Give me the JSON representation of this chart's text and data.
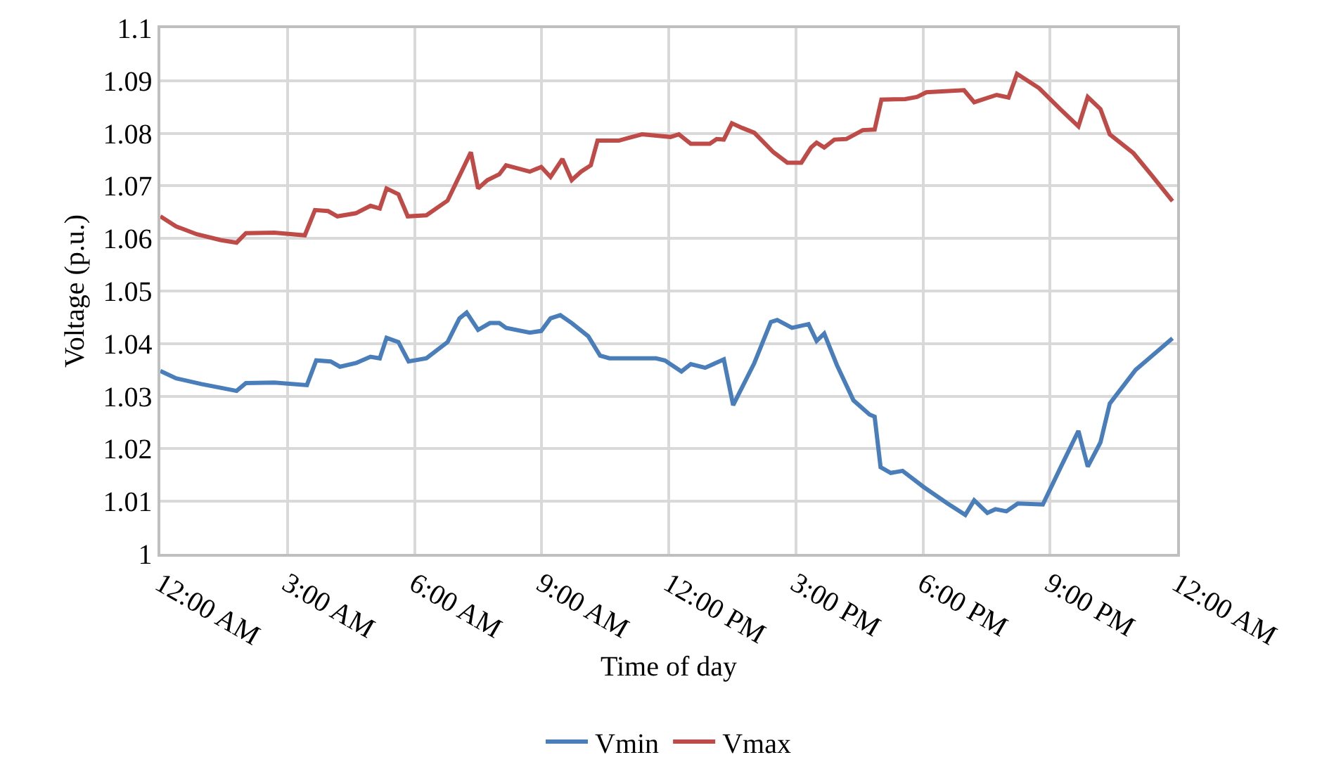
{
  "chart_data": {
    "type": "line",
    "xlabel": "Time of day",
    "ylabel": "Voltage (p.u.)",
    "xlim": [
      0,
      24
    ],
    "xticks": [
      {
        "value": 0,
        "label": "12:00 AM"
      },
      {
        "value": 3,
        "label": "3:00 AM"
      },
      {
        "value": 6,
        "label": "6:00 AM"
      },
      {
        "value": 9,
        "label": "9:00 AM"
      },
      {
        "value": 12,
        "label": "12:00 PM"
      },
      {
        "value": 15,
        "label": "3:00 PM"
      },
      {
        "value": 18,
        "label": "6:00 PM"
      },
      {
        "value": 21,
        "label": "9:00 PM"
      },
      {
        "value": 24,
        "label": "12:00 AM"
      }
    ],
    "ylim": [
      1,
      1.1
    ],
    "yticks": [
      1,
      1.01,
      1.02,
      1.03,
      1.04,
      1.05,
      1.06,
      1.07,
      1.08,
      1.09,
      1.1
    ],
    "grid": true,
    "legend": "bottom",
    "marker": "none",
    "line_style": "solid",
    "series": [
      {
        "name": "Vmin",
        "color": "#4a7ebb",
        "x": [
          0,
          0.37,
          0.97,
          1.42,
          1.8,
          2.02,
          2.69,
          3.46,
          3.68,
          4.02,
          4.24,
          4.62,
          4.96,
          5.18,
          5.34,
          5.62,
          5.86,
          6.28,
          6.78,
          7.06,
          7.23,
          7.5,
          7.78,
          8.0,
          8.16,
          8.72,
          8.99,
          9.21,
          9.44,
          9.71,
          10.1,
          10.38,
          10.6,
          11.15,
          11.7,
          11.91,
          12.3,
          12.52,
          12.86,
          13.3,
          13.52,
          14.02,
          14.41,
          14.56,
          14.91,
          15.3,
          15.49,
          15.67,
          15.97,
          16.36,
          16.74,
          16.86,
          17.0,
          17.24,
          17.52,
          18.02,
          18.58,
          19.0,
          19.21,
          19.52,
          19.71,
          19.97,
          20.24,
          20.83,
          21.24,
          21.67,
          21.89,
          22.19,
          22.41,
          23.02,
          23.89
        ],
        "values": [
          1.0348,
          1.0334,
          1.0323,
          1.0316,
          1.031,
          1.0325,
          1.0326,
          1.0321,
          1.0368,
          1.0366,
          1.0356,
          1.0363,
          1.0375,
          1.0372,
          1.0411,
          1.0403,
          1.0366,
          1.0372,
          1.0403,
          1.0448,
          1.0459,
          1.0426,
          1.0439,
          1.0439,
          1.043,
          1.0421,
          1.0424,
          1.0448,
          1.0454,
          1.0439,
          1.0414,
          1.0377,
          1.0372,
          1.0372,
          1.0372,
          1.0368,
          1.0347,
          1.0361,
          1.0354,
          1.037,
          1.0283,
          1.0363,
          1.0441,
          1.0445,
          1.043,
          1.0437,
          1.0405,
          1.0419,
          1.0359,
          1.0292,
          1.0265,
          1.0261,
          1.0165,
          1.0154,
          1.0158,
          1.0127,
          1.0096,
          1.0074,
          1.0102,
          1.0078,
          1.0085,
          1.0081,
          1.0096,
          1.0094,
          1.0163,
          1.0234,
          1.0166,
          1.0212,
          1.0286,
          1.035,
          1.041
        ]
      },
      {
        "name": "Vmax",
        "color": "#be4b48",
        "x": [
          0,
          0.37,
          0.86,
          1.42,
          1.8,
          2.02,
          2.69,
          3.41,
          3.65,
          3.96,
          4.18,
          4.62,
          4.96,
          5.18,
          5.34,
          5.62,
          5.84,
          6.28,
          6.78,
          7.06,
          7.33,
          7.5,
          7.72,
          8.0,
          8.16,
          8.72,
          8.99,
          9.21,
          9.49,
          9.71,
          9.93,
          10.16,
          10.32,
          10.82,
          11.04,
          11.37,
          12.04,
          12.24,
          12.52,
          12.97,
          13.13,
          13.3,
          13.49,
          13.74,
          14.02,
          14.47,
          14.8,
          15.13,
          15.36,
          15.49,
          15.67,
          15.91,
          16.19,
          16.58,
          16.86,
          17.02,
          17.58,
          17.86,
          18.08,
          18.97,
          19.21,
          19.74,
          20.02,
          20.22,
          20.74,
          21.24,
          21.67,
          21.89,
          22.19,
          22.41,
          22.97,
          23.41,
          23.89
        ],
        "values": [
          1.0642,
          1.0623,
          1.0608,
          1.0597,
          1.0592,
          1.061,
          1.0611,
          1.0606,
          1.0654,
          1.0652,
          1.0642,
          1.0648,
          1.0662,
          1.0657,
          1.0695,
          1.0684,
          1.0642,
          1.0644,
          1.0672,
          1.0719,
          1.0764,
          1.0695,
          1.0711,
          1.0722,
          1.0739,
          1.0727,
          1.0736,
          1.0717,
          1.0751,
          1.0711,
          1.0727,
          1.0739,
          1.0786,
          1.0786,
          1.0791,
          1.0798,
          1.0793,
          1.0798,
          1.078,
          1.078,
          1.0789,
          1.0788,
          1.0819,
          1.081,
          1.0801,
          1.0764,
          1.0744,
          1.0744,
          1.0773,
          1.0782,
          1.0773,
          1.0788,
          1.0789,
          1.0806,
          1.0807,
          1.0864,
          1.0865,
          1.0869,
          1.0878,
          1.0882,
          1.0859,
          1.0873,
          1.0868,
          1.0913,
          1.0886,
          1.0846,
          1.0813,
          1.0869,
          1.0846,
          1.0798,
          1.0762,
          1.0719,
          1.0671
        ]
      }
    ]
  }
}
